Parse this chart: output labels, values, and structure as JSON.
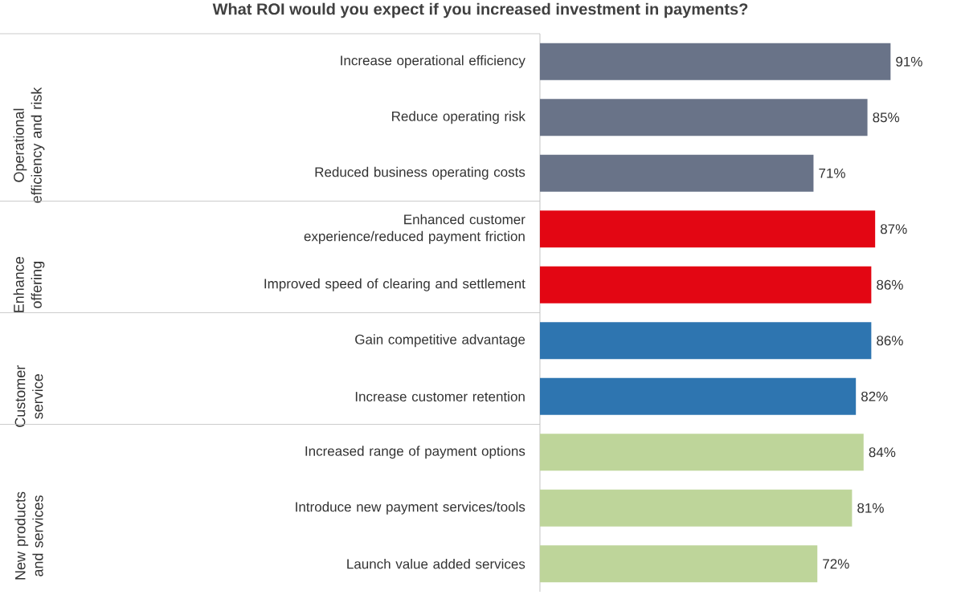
{
  "chart_data": {
    "type": "bar",
    "orientation": "horizontal",
    "title": "What ROI would you expect if you increased investment in payments?",
    "categories": [
      "Increase operational efficiency",
      "Reduce operating risk",
      "Reduced business operating costs",
      "Enhanced customer experience/reduced payment friction",
      "Improved speed of clearing and settlement",
      "Gain competitive advantage",
      "Increase customer retention",
      "Increased range of payment options",
      "Introduce new payment services/tools",
      "Launch value added services"
    ],
    "values": [
      91,
      85,
      71,
      87,
      86,
      86,
      82,
      84,
      81,
      72
    ],
    "value_labels": [
      "91%",
      "85%",
      "71%",
      "87%",
      "86%",
      "86%",
      "82%",
      "84%",
      "81%",
      "72%"
    ],
    "colors": [
      "#697388",
      "#697388",
      "#697388",
      "#e30613",
      "#e30613",
      "#2e75b0",
      "#2e75b0",
      "#bed59a",
      "#bed59a",
      "#bed59a"
    ],
    "annotations": [
      "Operational efficiency and risk",
      "Enhance offering",
      "Customer service",
      "New products and services"
    ]
  }
}
